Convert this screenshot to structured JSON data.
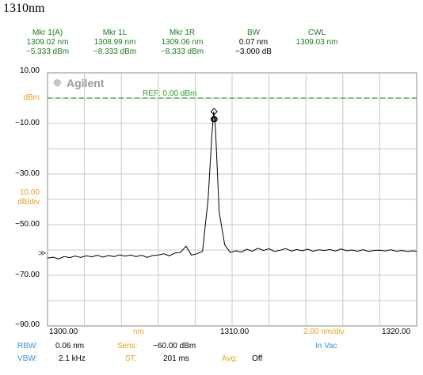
{
  "page_title": "1310nm",
  "markers": [
    {
      "label": "Mkr 1(A)",
      "line1": "1309.02 nm",
      "line2": "−5.333 dBm",
      "style": "g"
    },
    {
      "label": "Mkr 1L",
      "line1": "1308.99 nm",
      "line2": "−8.333 dBm",
      "style": "g"
    },
    {
      "label": "Mkr 1R",
      "line1": "1309.06 nm",
      "line2": "−8.333 dBm",
      "style": "g"
    },
    {
      "label": "BW",
      "line1": "0.07 nm",
      "line2": "−3.000 dB",
      "style": "k"
    },
    {
      "label": "CWL",
      "line1": "1309.03 nm",
      "line2": "",
      "style": "g"
    }
  ],
  "logo_text": "Agilent",
  "ref_label": "REF: 0.00 dBm",
  "y_side": {
    "top": "10.00",
    "unit": "dBm",
    "minus10": "−10.00",
    "minus30": "−30.00",
    "scale_value": "10.00",
    "scale_unit": "dB/div",
    "minus50": "−50.00",
    "minus70": "−70.00",
    "bottom": "−90.00"
  },
  "x_axis": {
    "left": "1300.00",
    "unit": "nm",
    "center": "1310.00",
    "per_div": "2.00 nm/div",
    "right": "1320.00",
    "in_vac": "In Vac"
  },
  "settings": {
    "rbw_label": "RBW:",
    "rbw_value": "0.06 nm",
    "sens_label": "Sens:",
    "sens_value": "−60.00 dBm",
    "vbw_label": "VBW:",
    "vbw_value": "2.1 kHz",
    "st_label": "ST:",
    "st_value": "201 ms",
    "avg_label": "Avg:",
    "avg_value": "Off"
  },
  "chart_data": {
    "type": "line",
    "xlim": [
      1300,
      1320
    ],
    "ylim": [
      -90,
      10
    ],
    "y_scale_per_div": 10,
    "x_scale_per_div": 2,
    "ref_level": 0,
    "grid": true,
    "colors": {
      "trace": "#000000",
      "ref_line": "#2e9e2e",
      "marker": "#000000"
    },
    "series": [
      {
        "x": [
          1300.0,
          1300.3,
          1300.6,
          1300.9,
          1301.2,
          1301.5,
          1301.8,
          1302.1,
          1302.4,
          1302.7,
          1303.0,
          1303.3,
          1303.6,
          1303.9,
          1304.2,
          1304.5,
          1304.8,
          1305.1,
          1305.4,
          1305.7,
          1306.0,
          1306.3,
          1306.6,
          1306.9,
          1307.2,
          1307.5,
          1307.8,
          1308.1,
          1308.4,
          1308.7,
          1308.9,
          1309.0,
          1309.1,
          1309.3,
          1309.6,
          1309.9,
          1310.2,
          1310.5,
          1310.8,
          1311.1,
          1311.4,
          1311.7,
          1312.0,
          1312.3,
          1312.6,
          1312.9,
          1313.2,
          1313.5,
          1313.8,
          1314.1,
          1314.4,
          1314.7,
          1315.0,
          1315.3,
          1315.6,
          1315.9,
          1316.2,
          1316.5,
          1316.8,
          1317.1,
          1317.4,
          1317.7,
          1318.0,
          1318.3,
          1318.6,
          1318.9,
          1319.2,
          1319.5,
          1319.8,
          1320.0
        ],
        "y": [
          -63.2,
          -62.8,
          -63.5,
          -62.6,
          -63.0,
          -62.4,
          -62.9,
          -62.3,
          -62.7,
          -62.1,
          -62.8,
          -62.2,
          -62.6,
          -61.9,
          -62.4,
          -62.0,
          -62.6,
          -62.1,
          -62.9,
          -62.2,
          -62.0,
          -61.5,
          -62.3,
          -61.2,
          -61.0,
          -58.5,
          -62.0,
          -61.5,
          -60.5,
          -40.0,
          -15.0,
          -5.3,
          -12.0,
          -45.0,
          -58.0,
          -61.0,
          -60.3,
          -60.8,
          -59.7,
          -60.5,
          -59.3,
          -60.2,
          -59.5,
          -60.6,
          -60.1,
          -59.4,
          -60.4,
          -59.8,
          -60.3,
          -59.7,
          -60.5,
          -59.9,
          -60.2,
          -59.8,
          -60.4,
          -59.6,
          -60.3,
          -60.0,
          -60.5,
          -59.9,
          -60.6,
          -60.2,
          -60.1,
          -60.4,
          -59.9,
          -60.5,
          -60.2,
          -60.6,
          -60.3,
          -60.5
        ]
      }
    ],
    "markers": [
      {
        "name": "Mkr 1",
        "x": 1309.02,
        "y": -5.333,
        "shape": "diamond"
      },
      {
        "name": "Mkr 1L",
        "x": 1308.99,
        "y": -8.333,
        "shape": "circle"
      },
      {
        "name": "Mkr 1R",
        "x": 1309.06,
        "y": -8.333,
        "shape": "circle"
      }
    ]
  }
}
